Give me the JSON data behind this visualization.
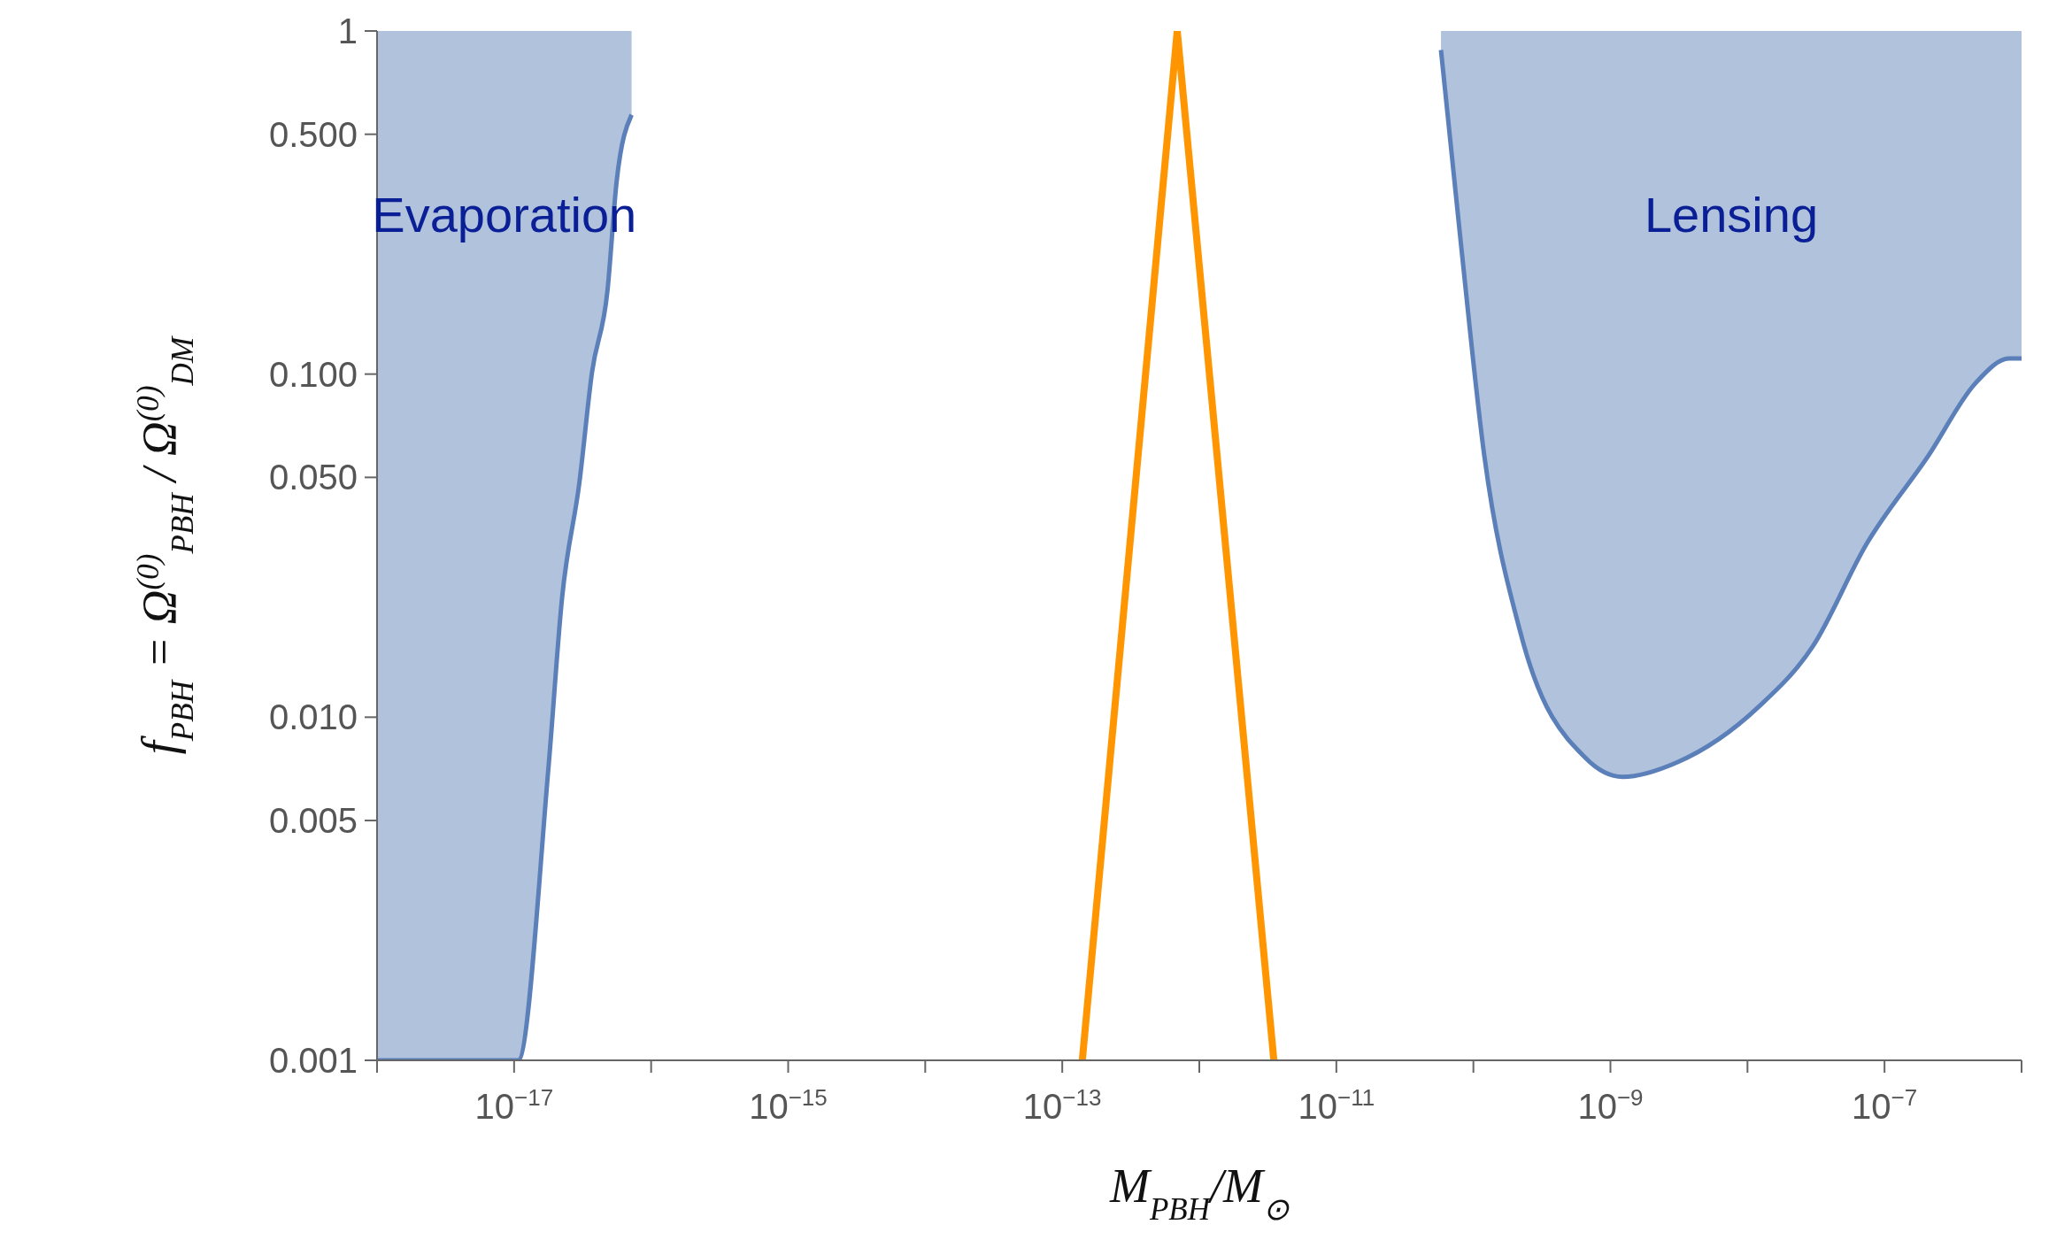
{
  "chart_data": {
    "type": "line",
    "xlabel": "M$_{PBH}$/M$_{⊙}$",
    "ylabel": "f$_{PBH}$ = Ω$^{(0)}$$_{PBH}$ / Ω$^{(0)}$$_{DM}$",
    "log": "xy",
    "xlim": [
      1e-18,
      1e-06
    ],
    "xticks": [
      {
        "value": 1e-18,
        "label": null
      },
      {
        "value": 1e-17,
        "label": "10$^{−17}$"
      },
      {
        "value": 1e-16,
        "label": null
      },
      {
        "value": 1e-15,
        "label": "10$^{−15}$"
      },
      {
        "value": 1e-14,
        "label": null
      },
      {
        "value": 1e-13,
        "label": "10$^{−13}$"
      },
      {
        "value": 1e-12,
        "label": null
      },
      {
        "value": 1e-11,
        "label": "10$^{−11}$"
      },
      {
        "value": 1e-10,
        "label": null
      },
      {
        "value": 1e-09,
        "label": "10$^{−9}$"
      },
      {
        "value": 1e-08,
        "label": null
      },
      {
        "value": 1e-07,
        "label": "10$^{−7}$"
      },
      {
        "value": 1e-06,
        "label": null
      }
    ],
    "ylim": [
      0.001,
      1
    ],
    "yticks": [
      {
        "value": 0.001,
        "label": "0.001"
      },
      {
        "value": 0.005,
        "label": "0.005"
      },
      {
        "value": 0.01,
        "label": "0.010"
      },
      {
        "value": 0.05,
        "label": "0.050"
      },
      {
        "value": 0.1,
        "label": "0.100"
      },
      {
        "value": 0.5,
        "label": "0.500"
      },
      1
    ],
    "annotations": [
      "Evaporation",
      "Lensing"
    ],
    "series": [
      {
        "color": "#5b7fb8",
        "x": [
          1e-18,
          1.07e-17,
          1.78e-17,
          2.24e-17,
          3e-17,
          3.7e-17,
          4.8e-17,
          5.6e-17,
          7.2e-17
        ],
        "values": [
          0.001,
          0.001,
          0.0071,
          0.0223,
          0.0485,
          0.101,
          0.175,
          0.364,
          0.57
        ],
        "lower": [
          0.001,
          0.001,
          0.0071,
          0.0223,
          0.0485,
          0.101,
          0.175,
          0.364,
          0.57
        ],
        "upper": [
          1,
          1,
          1,
          1,
          1,
          1,
          1,
          1,
          1
        ]
      },
      {
        "color": "#5b7fb8",
        "x": [
          5.8e-11,
          8.1e-11,
          1.2e-10,
          2.2e-10,
          6.6e-10,
          1.23e-09,
          3.1e-09,
          1.2e-08,
          3e-08,
          7.4e-08,
          2.1e-07,
          4.6e-07,
          8.1e-07,
          1e-06
        ],
        "values": [
          0.88,
          0.241,
          0.058,
          0.0177,
          0.0076,
          0.0067,
          0.0074,
          0.0107,
          0.0161,
          0.032,
          0.058,
          0.094,
          0.111,
          0.111
        ],
        "lower": [
          0.88,
          0.241,
          0.058,
          0.0177,
          0.0076,
          0.0067,
          0.0074,
          0.0107,
          0.0161,
          0.032,
          0.058,
          0.094,
          0.111,
          0.111
        ],
        "upper": [
          1,
          1,
          1,
          1,
          1,
          1,
          1,
          1,
          1,
          1,
          1,
          1,
          1,
          1
        ]
      },
      {
        "color": "#ff9500",
        "x": [
          1.4e-13,
          6.9e-13,
          3.5e-12
        ],
        "values": [
          0.001,
          1,
          0.001
        ]
      }
    ]
  }
}
